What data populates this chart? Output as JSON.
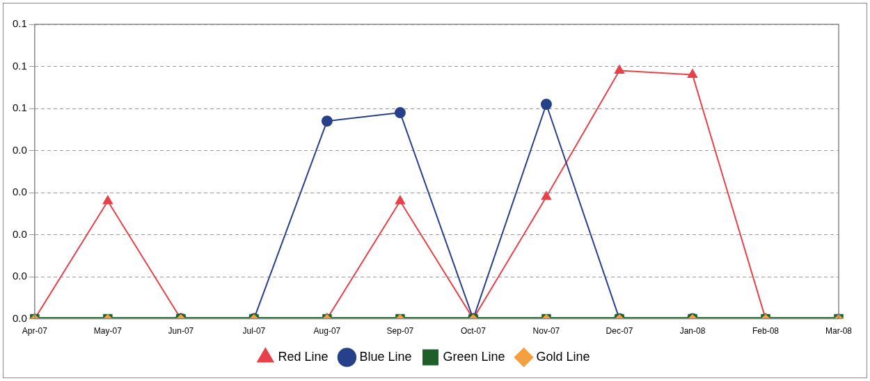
{
  "chart_data": {
    "type": "line",
    "categories": [
      "Apr-07",
      "May-07",
      "Jun-07",
      "Jul-07",
      "Aug-07",
      "Sep-07",
      "Oct-07",
      "Nov-07",
      "Dec-07",
      "Jan-08",
      "Feb-08",
      "Mar-08"
    ],
    "series": [
      {
        "name": "Red Line",
        "color": "#e8414a",
        "marker": "triangle",
        "values": [
          0,
          0.028,
          0,
          0,
          0,
          0.028,
          0,
          0.029,
          0.059,
          0.058,
          0,
          0
        ]
      },
      {
        "name": "Blue Line",
        "color": "#27408b",
        "marker": "circle",
        "values": [
          null,
          null,
          0,
          0,
          0.047,
          0.049,
          0,
          0.051,
          0,
          0,
          null,
          null
        ]
      },
      {
        "name": "Green Line",
        "color": "#1f5f2a",
        "marker": "square",
        "values": [
          0,
          0,
          0,
          0,
          0,
          0,
          0,
          0,
          0,
          0,
          0,
          0
        ]
      },
      {
        "name": "Gold Line",
        "color": "#f5a040",
        "marker": "diamond",
        "values": [
          0,
          0,
          0,
          0,
          0,
          0,
          0,
          0,
          0,
          0,
          0,
          0
        ]
      }
    ],
    "ylim": [
      0,
      0.07
    ],
    "yticks": [
      {
        "value": 0,
        "label": "0.0"
      },
      {
        "value": 0.01,
        "label": "0.0"
      },
      {
        "value": 0.02,
        "label": "0.0"
      },
      {
        "value": 0.03,
        "label": "0.0"
      },
      {
        "value": 0.04,
        "label": "0.0"
      },
      {
        "value": 0.05,
        "label": "0.1"
      },
      {
        "value": 0.06,
        "label": "0.1"
      },
      {
        "value": 0.07,
        "label": "0.1"
      }
    ],
    "grid": "y",
    "legend": "bottom",
    "line_style": "solid"
  }
}
